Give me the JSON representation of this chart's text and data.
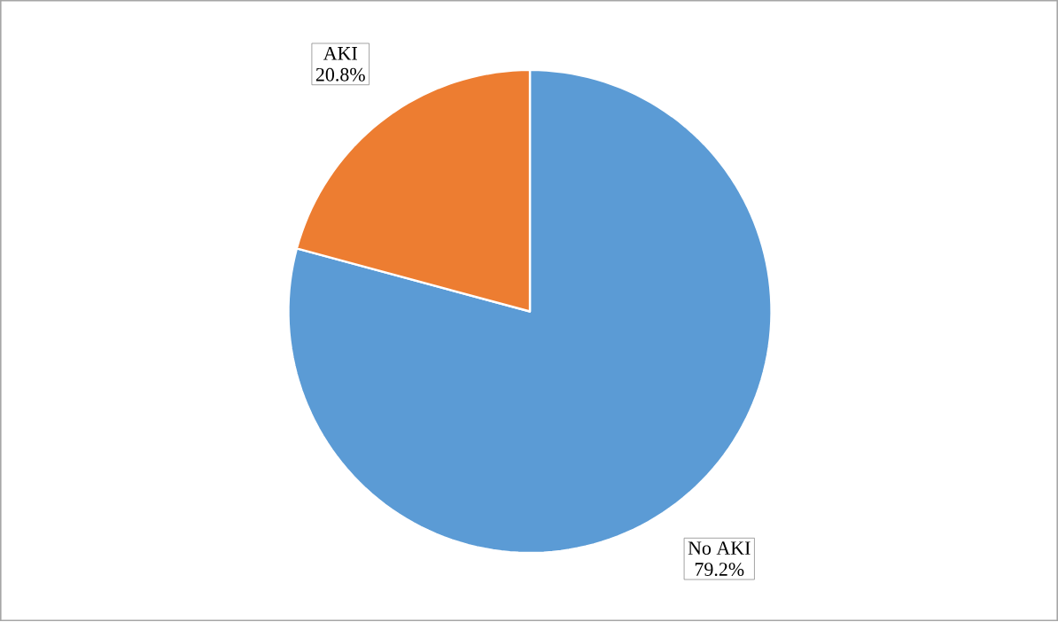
{
  "chart_data": {
    "type": "pie",
    "categories": [
      "No AKI",
      "AKI"
    ],
    "values": [
      79.2,
      20.8
    ],
    "value_labels": [
      "79.2%",
      "20.8%"
    ],
    "colors": [
      "#5b9bd5",
      "#ed7d31"
    ]
  }
}
